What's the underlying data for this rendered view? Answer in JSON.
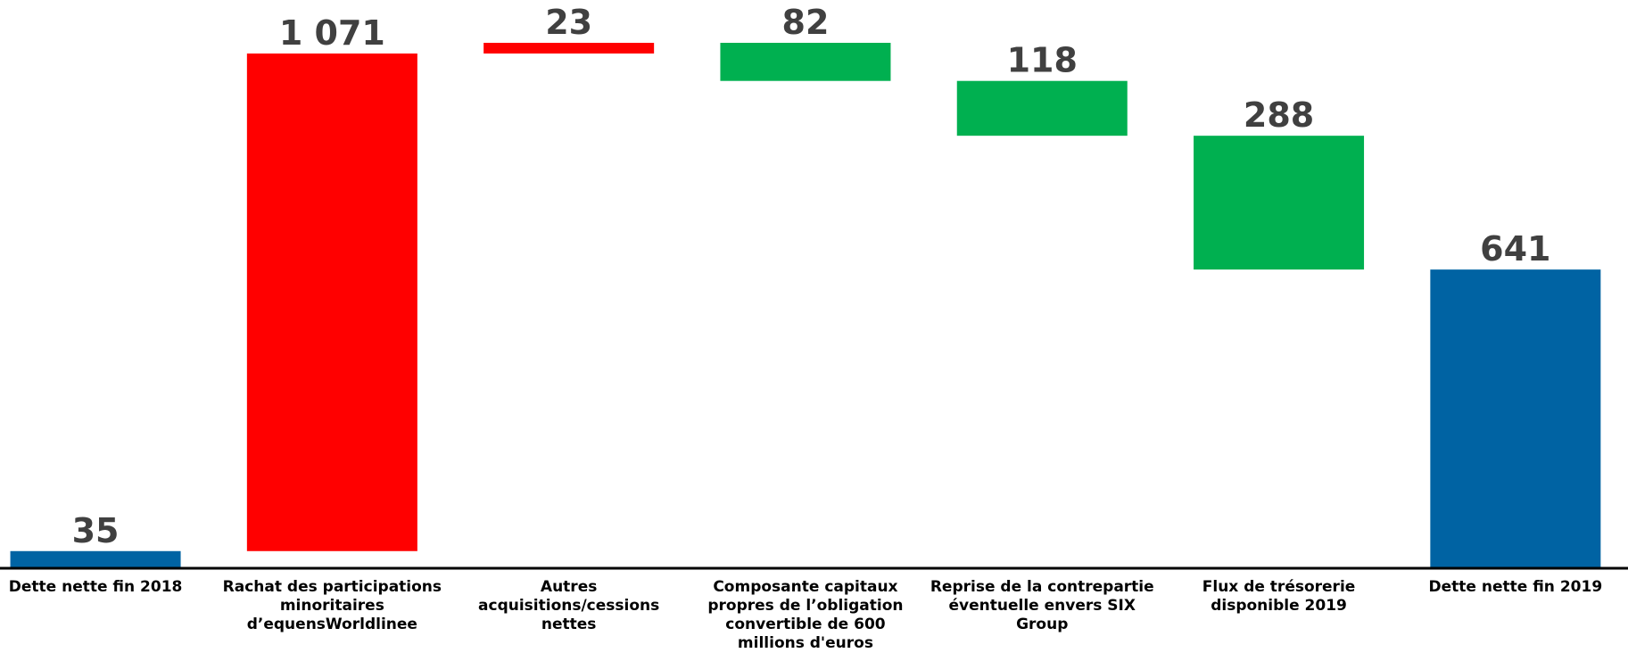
{
  "chart_data": {
    "type": "waterfall",
    "categories": [
      "Dette nette fin 2018",
      "Rachat des participations minoritaires d’equensWorldlinee",
      "Autres acquisitions/cessions nettes",
      "Composante capitaux propres de l’obligation convertible de 600 millions d'euros",
      "Reprise de la contrepartie éventuelle envers SIX Group",
      "Flux de trésorerie disponible 2019",
      "Dette nette fin 2019"
    ],
    "values": [
      35,
      1071,
      23,
      -82,
      -118,
      -288,
      641
    ],
    "value_labels": [
      "35",
      "1 071",
      "23",
      "82",
      "118",
      "288",
      "641"
    ],
    "measure": [
      "absolute",
      "relative",
      "relative",
      "relative",
      "relative",
      "relative",
      "total"
    ],
    "colors": [
      "#0063a3",
      "#ff0000",
      "#ff0000",
      "#00b050",
      "#00b050",
      "#00b050",
      "#0063a3"
    ]
  }
}
